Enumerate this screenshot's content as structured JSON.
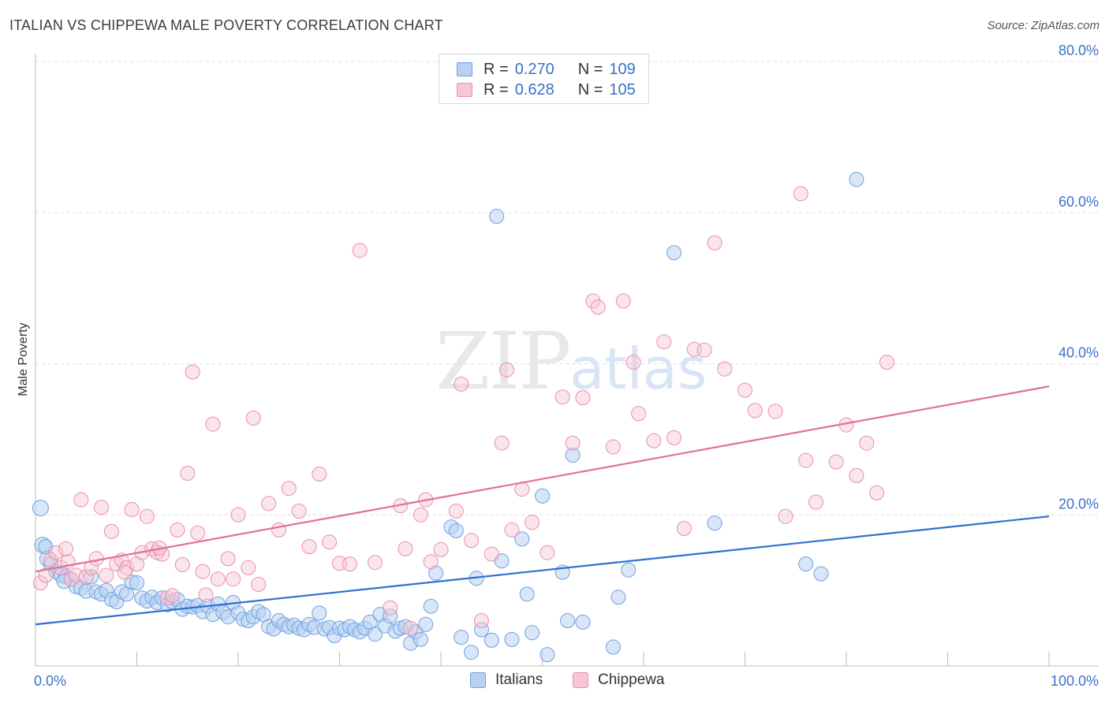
{
  "header": {
    "title": "ITALIAN VS CHIPPEWA MALE POVERTY CORRELATION CHART",
    "source": "Source: ZipAtlas.com"
  },
  "watermark": {
    "left": "ZIP",
    "right": "atlas"
  },
  "legend": {
    "r_label": "R =",
    "n_label": "N =",
    "series": [
      {
        "name": "Italians",
        "r": "0.270",
        "n": "109",
        "fill": "#b8d1f3",
        "stroke": "#6fa0e0"
      },
      {
        "name": "Chippewa",
        "r": "0.628",
        "n": "105",
        "fill": "#f7c6d5",
        "stroke": "#ea8fab"
      }
    ]
  },
  "colors": {
    "italians_line": "#2f6fd1",
    "chippewa_line": "#e0709a",
    "grid": "#dddddd",
    "tick_text": "#3a72c9"
  },
  "chart_data": {
    "type": "scatter",
    "title": "ITALIAN VS CHIPPEWA MALE POVERTY CORRELATION CHART",
    "xlabel": "",
    "ylabel": "Male Poverty",
    "xlim": [
      0,
      100
    ],
    "ylim": [
      0,
      80
    ],
    "x_tick_labels": [
      "0.0%",
      "100.0%"
    ],
    "y_ticks": [
      20,
      40,
      60,
      80
    ],
    "y_tick_labels": [
      "20.0%",
      "40.0%",
      "60.0%",
      "80.0%"
    ],
    "grid": "horizontal dashed",
    "legend_position": "top-center",
    "series": [
      {
        "name": "Italians",
        "trend": {
          "x": [
            0,
            100
          ],
          "y": [
            5.5,
            19.8
          ]
        },
        "points": [
          [
            0.5,
            20.9
          ],
          [
            0.7,
            16.0
          ],
          [
            1.2,
            14.2
          ],
          [
            1.5,
            13.5
          ],
          [
            2.0,
            12.5
          ],
          [
            2.5,
            12.0
          ],
          [
            3.0,
            11.8
          ],
          [
            3.5,
            11.5
          ],
          [
            4.0,
            10.5
          ],
          [
            4.5,
            10.3
          ],
          [
            5.0,
            9.9
          ],
          [
            5.5,
            11.8
          ],
          [
            6.0,
            9.8
          ],
          [
            6.5,
            9.5
          ],
          [
            7.0,
            10.0
          ],
          [
            7.5,
            8.8
          ],
          [
            8.0,
            8.5
          ],
          [
            8.5,
            9.8
          ],
          [
            9.0,
            9.5
          ],
          [
            9.5,
            11.1
          ],
          [
            10.0,
            11.0
          ],
          [
            10.5,
            9.0
          ],
          [
            11.0,
            8.6
          ],
          [
            11.5,
            9.1
          ],
          [
            12.0,
            8.4
          ],
          [
            12.5,
            9.0
          ],
          [
            13.0,
            8.1
          ],
          [
            13.5,
            8.5
          ],
          [
            14.0,
            8.8
          ],
          [
            14.5,
            7.5
          ],
          [
            15.0,
            7.9
          ],
          [
            15.5,
            7.8
          ],
          [
            16.0,
            8.0
          ],
          [
            16.5,
            7.2
          ],
          [
            17.0,
            7.9
          ],
          [
            17.5,
            6.8
          ],
          [
            18.0,
            8.2
          ],
          [
            18.5,
            7.1
          ],
          [
            19.0,
            6.5
          ],
          [
            19.5,
            8.4
          ],
          [
            20.0,
            7.0
          ],
          [
            20.5,
            6.2
          ],
          [
            21.0,
            6.0
          ],
          [
            21.5,
            6.5
          ],
          [
            22.0,
            7.2
          ],
          [
            22.5,
            6.8
          ],
          [
            23.0,
            5.2
          ],
          [
            23.5,
            4.9
          ],
          [
            24.0,
            6.0
          ],
          [
            24.5,
            5.5
          ],
          [
            25.0,
            5.2
          ],
          [
            25.5,
            5.4
          ],
          [
            26.0,
            5.0
          ],
          [
            26.5,
            4.8
          ],
          [
            27.0,
            5.5
          ],
          [
            27.5,
            5.1
          ],
          [
            28.0,
            7.0
          ],
          [
            28.5,
            4.9
          ],
          [
            29.0,
            5.1
          ],
          [
            29.5,
            4.0
          ],
          [
            30.0,
            5.0
          ],
          [
            30.5,
            4.8
          ],
          [
            31.0,
            5.2
          ],
          [
            31.5,
            4.8
          ],
          [
            32.0,
            4.5
          ],
          [
            32.5,
            5.0
          ],
          [
            33.0,
            5.8
          ],
          [
            33.5,
            4.2
          ],
          [
            34.0,
            6.8
          ],
          [
            34.5,
            5.3
          ],
          [
            35.0,
            6.6
          ],
          [
            35.5,
            4.6
          ],
          [
            36.0,
            5.0
          ],
          [
            36.5,
            5.2
          ],
          [
            37.0,
            3.0
          ],
          [
            37.5,
            4.5
          ],
          [
            38.0,
            3.5
          ],
          [
            38.5,
            5.5
          ],
          [
            39.0,
            7.9
          ],
          [
            39.5,
            12.3
          ],
          [
            41.0,
            18.4
          ],
          [
            41.5,
            17.9
          ],
          [
            42.0,
            3.8
          ],
          [
            43.0,
            1.8
          ],
          [
            43.5,
            11.6
          ],
          [
            44.0,
            4.8
          ],
          [
            45.0,
            3.4
          ],
          [
            45.5,
            59.5
          ],
          [
            46.0,
            13.9
          ],
          [
            47.0,
            3.5
          ],
          [
            48.0,
            16.8
          ],
          [
            48.5,
            9.5
          ],
          [
            49.0,
            4.4
          ],
          [
            50.0,
            22.5
          ],
          [
            50.5,
            1.5
          ],
          [
            52.0,
            12.4
          ],
          [
            52.5,
            6.0
          ],
          [
            53.0,
            27.9
          ],
          [
            54.0,
            5.8
          ],
          [
            57.0,
            2.5
          ],
          [
            57.5,
            9.1
          ],
          [
            58.5,
            12.7
          ],
          [
            63.0,
            54.7
          ],
          [
            67.0,
            18.9
          ],
          [
            76.0,
            13.5
          ],
          [
            77.5,
            12.2
          ],
          [
            81.0,
            64.4
          ],
          [
            1.0,
            15.8
          ],
          [
            2.8,
            11.2
          ]
        ]
      },
      {
        "name": "Chippewa",
        "trend": {
          "x": [
            0,
            100
          ],
          "y": [
            12.5,
            37.0
          ]
        },
        "points": [
          [
            0.5,
            11.0
          ],
          [
            1.0,
            12.0
          ],
          [
            1.5,
            14.0
          ],
          [
            2.0,
            15.0
          ],
          [
            2.5,
            13.0
          ],
          [
            3.0,
            15.5
          ],
          [
            3.5,
            11.5
          ],
          [
            4.0,
            12.0
          ],
          [
            4.5,
            22.0
          ],
          [
            5.0,
            11.8
          ],
          [
            5.5,
            13.0
          ],
          [
            6.0,
            14.2
          ],
          [
            6.5,
            21.0
          ],
          [
            7.0,
            12.0
          ],
          [
            7.5,
            17.8
          ],
          [
            8.0,
            13.5
          ],
          [
            8.5,
            14.0
          ],
          [
            9.0,
            13.0
          ],
          [
            9.5,
            20.7
          ],
          [
            10.0,
            13.5
          ],
          [
            10.5,
            15.0
          ],
          [
            11.0,
            19.8
          ],
          [
            11.5,
            15.5
          ],
          [
            12.0,
            15.0
          ],
          [
            12.5,
            14.8
          ],
          [
            13.0,
            9.0
          ],
          [
            13.5,
            9.3
          ],
          [
            14.0,
            18.0
          ],
          [
            14.5,
            13.4
          ],
          [
            15.0,
            25.5
          ],
          [
            15.5,
            38.9
          ],
          [
            16.0,
            17.6
          ],
          [
            16.5,
            12.5
          ],
          [
            17.5,
            32.0
          ],
          [
            18.0,
            11.5
          ],
          [
            19.0,
            14.2
          ],
          [
            19.5,
            11.5
          ],
          [
            20.0,
            20.0
          ],
          [
            21.0,
            13.0
          ],
          [
            21.5,
            32.8
          ],
          [
            22.0,
            10.8
          ],
          [
            23.0,
            21.5
          ],
          [
            24.0,
            18.0
          ],
          [
            25.0,
            23.5
          ],
          [
            26.0,
            20.5
          ],
          [
            27.0,
            15.8
          ],
          [
            28.0,
            25.4
          ],
          [
            29.0,
            16.4
          ],
          [
            30.0,
            13.6
          ],
          [
            31.0,
            13.5
          ],
          [
            32.0,
            55.0
          ],
          [
            33.5,
            13.7
          ],
          [
            35.0,
            7.7
          ],
          [
            36.0,
            21.2
          ],
          [
            36.5,
            15.5
          ],
          [
            37.0,
            5.0
          ],
          [
            38.0,
            20.0
          ],
          [
            38.5,
            22.0
          ],
          [
            39.0,
            13.8
          ],
          [
            40.0,
            15.4
          ],
          [
            41.5,
            20.5
          ],
          [
            42.0,
            37.3
          ],
          [
            43.0,
            16.6
          ],
          [
            44.0,
            6.0
          ],
          [
            45.0,
            14.8
          ],
          [
            46.0,
            29.5
          ],
          [
            46.5,
            39.2
          ],
          [
            47.0,
            18.0
          ],
          [
            48.0,
            23.4
          ],
          [
            49.0,
            19.0
          ],
          [
            50.5,
            15.0
          ],
          [
            52.0,
            35.6
          ],
          [
            53.0,
            29.5
          ],
          [
            54.0,
            35.5
          ],
          [
            55.0,
            48.3
          ],
          [
            55.5,
            47.5
          ],
          [
            57.0,
            29.0
          ],
          [
            58.0,
            48.3
          ],
          [
            59.0,
            40.2
          ],
          [
            59.5,
            33.4
          ],
          [
            61.0,
            29.8
          ],
          [
            62.0,
            42.9
          ],
          [
            63.0,
            30.2
          ],
          [
            64.0,
            18.2
          ],
          [
            65.0,
            41.9
          ],
          [
            66.0,
            41.8
          ],
          [
            67.0,
            56.0
          ],
          [
            68.0,
            39.3
          ],
          [
            70.0,
            36.5
          ],
          [
            71.0,
            33.8
          ],
          [
            73.0,
            33.7
          ],
          [
            74.0,
            19.8
          ],
          [
            75.5,
            62.5
          ],
          [
            76.0,
            27.2
          ],
          [
            77.0,
            21.7
          ],
          [
            79.0,
            27.0
          ],
          [
            80.0,
            31.9
          ],
          [
            81.0,
            25.2
          ],
          [
            82.0,
            29.5
          ],
          [
            83.0,
            22.9
          ],
          [
            84.0,
            40.2
          ],
          [
            3.2,
            13.8
          ],
          [
            8.8,
            12.4
          ],
          [
            12.2,
            15.6
          ],
          [
            16.8,
            9.4
          ]
        ]
      }
    ]
  }
}
